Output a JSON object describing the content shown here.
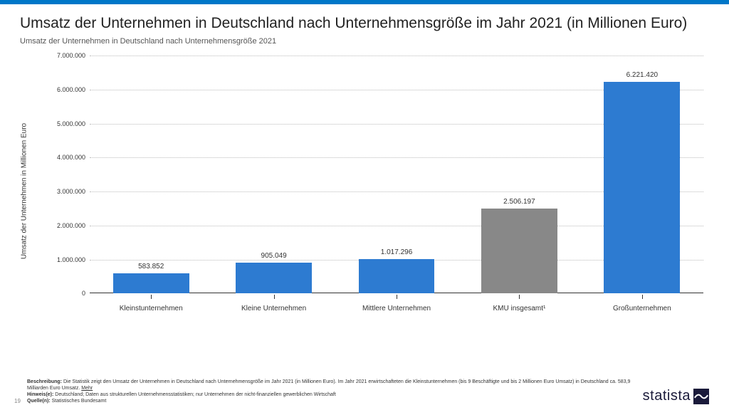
{
  "title": "Umsatz der Unternehmen in Deutschland nach Unternehmensgröße im Jahr 2021 (in Millionen Euro)",
  "subtitle": "Umsatz der Unternehmen in Deutschland nach Unternehmensgröße 2021",
  "chart": {
    "type": "bar",
    "y_axis_label": "Umsatz der Unternehmen in Millionen Euro",
    "ylim_max": 7000000,
    "ytick_step": 1000000,
    "y_ticks": [
      "0",
      "1.000.000",
      "2.000.000",
      "3.000.000",
      "4.000.000",
      "5.000.000",
      "6.000.000",
      "7.000.000"
    ],
    "categories": [
      "Kleinstunternehmen",
      "Kleine Unternehmen",
      "Mittlere Unternehmen",
      "KMU insgesamt¹",
      "Großunternehmen"
    ],
    "values": [
      583852,
      905049,
      1017296,
      2506197,
      6221420
    ],
    "value_labels": [
      "583.852",
      "905.049",
      "1.017.296",
      "2.506.197",
      "6.221.420"
    ],
    "bar_colors": [
      "#2d7bd1",
      "#2d7bd1",
      "#2d7bd1",
      "#888888",
      "#2d7bd1"
    ],
    "grid_color": "#bbbbbb",
    "axis_color": "#333333",
    "background_color": "#ffffff"
  },
  "footer": {
    "page_number": "19",
    "desc_label": "Beschreibung:",
    "desc_text": " Die Statistik zeigt den Umsatz der Unternehmen in Deutschland nach Unternehmensgröße im Jahr 2021 (in Millionen Euro). Im Jahr 2021 erwirtschafteten die Kleinstunternehmen (bis 9 Beschäftigte und bis 2 Millionen Euro Umsatz) in Deutschland ca. 583,9 Milliarden Euro Umsatz. ",
    "more": "Mehr",
    "hint_label": "Hinweis(e):",
    "hint_text": " Deutschland; Daten aus strukturellen Unternehmensstatistiken; nur Unternehmen der nicht-finanziellen gewerblichen Wirtschaft",
    "source_label": "Quelle(n):",
    "source_text": " Statistisches Bundesamt"
  },
  "logo_text": "statista",
  "accent_color": "#0077c8"
}
